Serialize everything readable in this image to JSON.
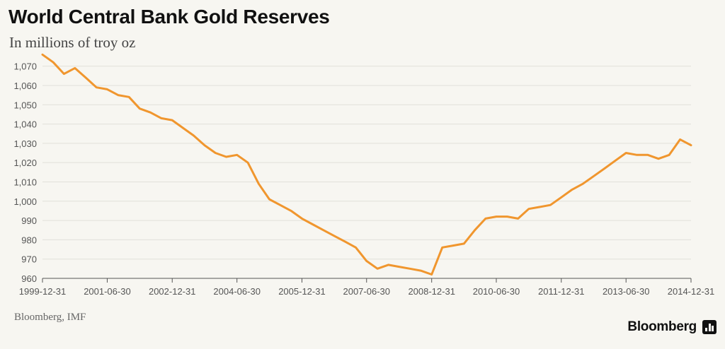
{
  "header": {
    "title": "World Central Bank Gold Reserves",
    "subtitle": "In millions of troy oz"
  },
  "footer": {
    "source": "Bloomberg, IMF",
    "brand": "Bloomberg",
    "brand_icon": "bloomberg-logo-icon"
  },
  "chart_data": {
    "type": "line",
    "title": "World Central Bank Gold Reserves",
    "subtitle": "In millions of troy oz",
    "xlabel": "",
    "ylabel": "",
    "ylim": [
      960,
      1075
    ],
    "xlim": [
      "1999-12-31",
      "2014-12-31"
    ],
    "yticks": [
      960,
      970,
      980,
      990,
      1000,
      1010,
      1020,
      1030,
      1040,
      1050,
      1060,
      1070
    ],
    "ytick_labels": [
      "960",
      "970",
      "980",
      "990",
      "1,000",
      "1,010",
      "1,020",
      "1,030",
      "1,040",
      "1,050",
      "1,060",
      "1,070"
    ],
    "xticks": [
      "1999-12-31",
      "2001-06-30",
      "2002-12-31",
      "2004-06-30",
      "2005-12-31",
      "2007-06-30",
      "2008-12-31",
      "2010-06-30",
      "2011-12-31",
      "2013-06-30",
      "2014-12-31"
    ],
    "grid": "horizontal",
    "line_color": "#f0962e",
    "series": [
      {
        "x": [
          "1999-12-31",
          "2000-03-31",
          "2000-06-30",
          "2000-09-30",
          "2000-12-31",
          "2001-03-31",
          "2001-06-30",
          "2001-09-30",
          "2001-12-31",
          "2002-03-31",
          "2002-06-30",
          "2002-09-30",
          "2002-12-31",
          "2003-03-31",
          "2003-06-30",
          "2003-09-30",
          "2003-12-31",
          "2004-03-31",
          "2004-06-30",
          "2004-09-30",
          "2004-12-31",
          "2005-03-31",
          "2005-06-30",
          "2005-09-30",
          "2005-12-31",
          "2006-03-31",
          "2006-06-30",
          "2006-09-30",
          "2006-12-31",
          "2007-03-31",
          "2007-06-30",
          "2007-09-30",
          "2007-12-31",
          "2008-03-31",
          "2008-06-30",
          "2008-09-30",
          "2008-12-31",
          "2009-03-31",
          "2009-06-30",
          "2009-09-30",
          "2009-12-31",
          "2010-03-31",
          "2010-06-30",
          "2010-09-30",
          "2010-12-31",
          "2011-03-31",
          "2011-06-30",
          "2011-09-30",
          "2011-12-31",
          "2012-03-31",
          "2012-06-30",
          "2012-09-30",
          "2012-12-31",
          "2013-03-31",
          "2013-06-30",
          "2013-09-30",
          "2013-12-31",
          "2014-03-31",
          "2014-06-30",
          "2014-09-30",
          "2014-12-31"
        ],
        "values": [
          1076,
          1072,
          1066,
          1069,
          1064,
          1059,
          1058,
          1055,
          1054,
          1048,
          1046,
          1043,
          1042,
          1038,
          1034,
          1029,
          1025,
          1023,
          1024,
          1020,
          1009,
          1001,
          998,
          995,
          991,
          988,
          985,
          982,
          979,
          976,
          969,
          965,
          967,
          966,
          965,
          964,
          962,
          976,
          977,
          978,
          985,
          991,
          992,
          992,
          991,
          996,
          997,
          998,
          1002,
          1006,
          1009,
          1013,
          1017,
          1021,
          1025,
          1024,
          1024,
          1022,
          1024,
          1032,
          1029
        ]
      }
    ]
  }
}
